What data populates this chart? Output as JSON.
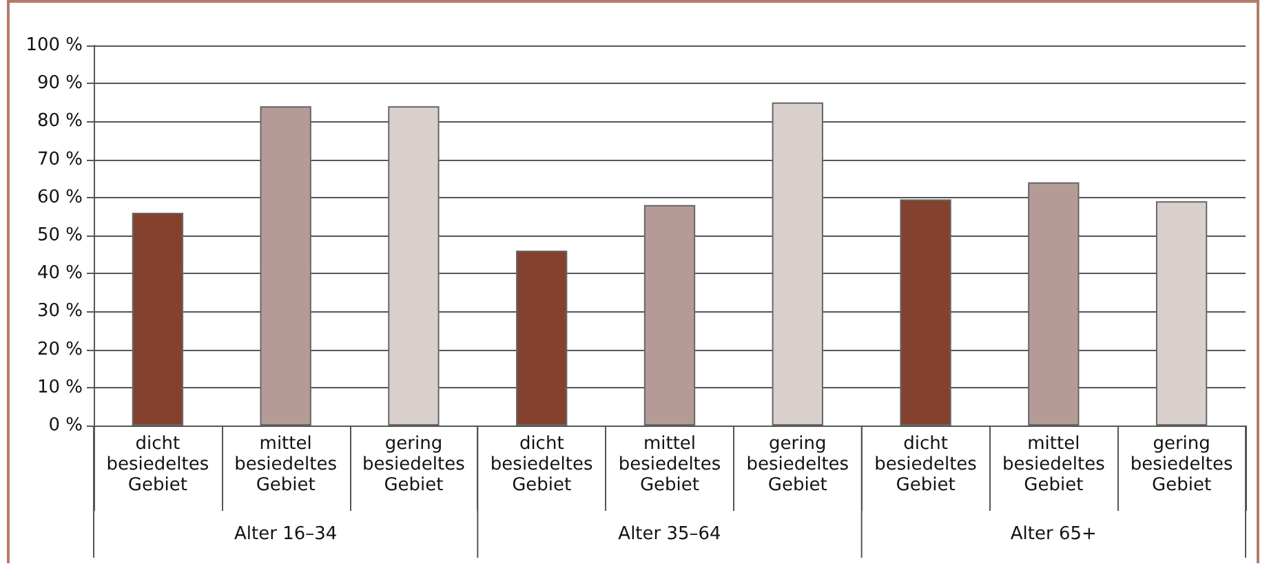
{
  "chart_data": {
    "type": "bar",
    "categories": [
      "dicht besiedeltes Gebiet",
      "mittel besiedeltes Gebiet",
      "gering besiedeltes Gebiet",
      "dicht besiedeltes Gebiet",
      "mittel besiedeltes Gebiet",
      "gering besiedeltes Gebiet",
      "dicht besiedeltes Gebiet",
      "mittel besiedeltes Gebiet",
      "gering besiedeltes Gebiet"
    ],
    "values": [
      56,
      84,
      84,
      46,
      58,
      85,
      59.5,
      64,
      59
    ],
    "colors": [
      "#84422e",
      "#b59b96",
      "#d9d0cd",
      "#84422e",
      "#b59b96",
      "#d9d0cd",
      "#84422e",
      "#b59b96",
      "#d9d0cd"
    ],
    "ylim": [
      0,
      100
    ],
    "yticks": [
      {
        "value": 0,
        "label": "0 %"
      },
      {
        "value": 10,
        "label": "10 %"
      },
      {
        "value": 20,
        "label": "20 %"
      },
      {
        "value": 30,
        "label": "30 %"
      },
      {
        "value": 40,
        "label": "40 %"
      },
      {
        "value": 50,
        "label": "50 %"
      },
      {
        "value": 60,
        "label": "60 %"
      },
      {
        "value": 70,
        "label": "70 %"
      },
      {
        "value": 80,
        "label": "80 %"
      },
      {
        "value": 90,
        "label": "90 %"
      },
      {
        "value": 100,
        "label": "100 %"
      }
    ],
    "grid": "y",
    "annotations": [
      "Alter 16–34",
      "Alter 35–64",
      "Alter 65+"
    ]
  }
}
